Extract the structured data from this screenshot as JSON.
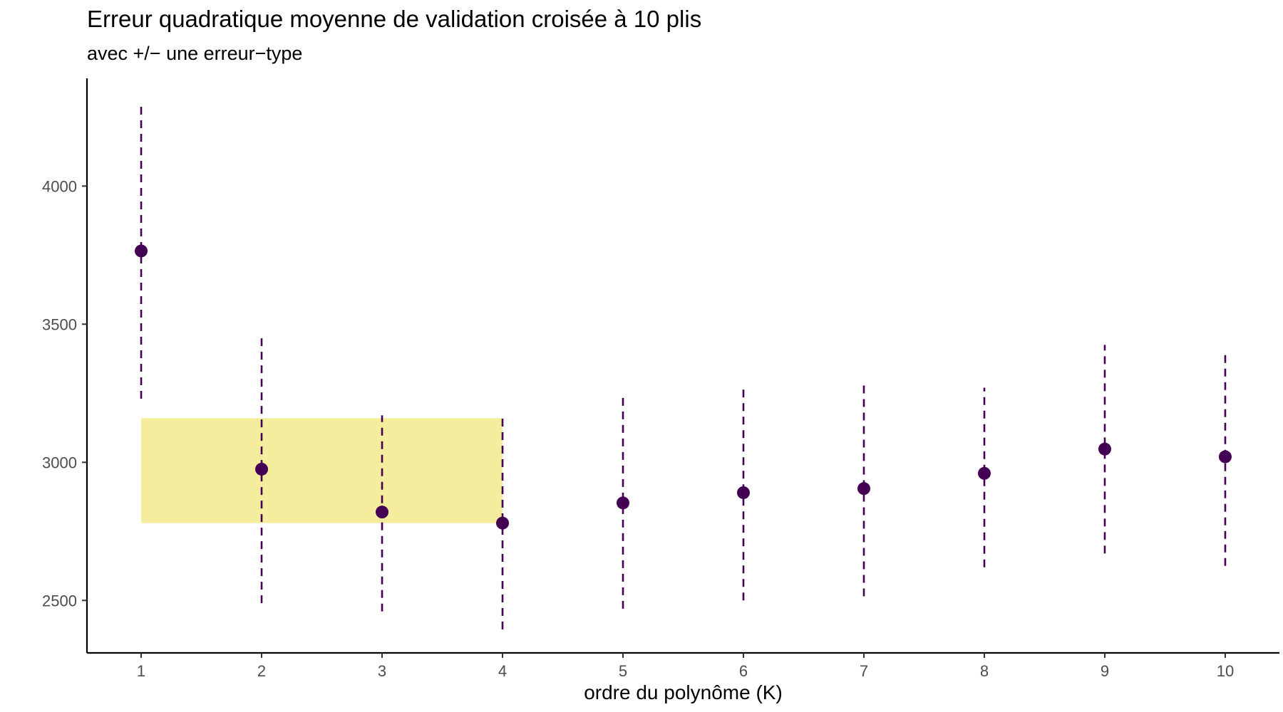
{
  "chart_data": {
    "type": "scatter",
    "title": "Erreur quadratique moyenne de validation croisée à 10 plis",
    "subtitle": "avec +/− une erreur−type",
    "xlabel": "ordre du polynôme (K)",
    "ylabel": "",
    "x": [
      1,
      2,
      3,
      4,
      5,
      6,
      7,
      8,
      9,
      10
    ],
    "x_tick_labels": [
      "1",
      "2",
      "3",
      "4",
      "5",
      "6",
      "7",
      "8",
      "9",
      "10"
    ],
    "y": [
      3765,
      2975,
      2820,
      2780,
      2853,
      2890,
      2905,
      2960,
      3048,
      3020
    ],
    "error_low": [
      3230,
      2490,
      2460,
      2395,
      2470,
      2500,
      2515,
      2620,
      2670,
      2625
    ],
    "error_high": [
      4290,
      3450,
      3170,
      3160,
      3235,
      3275,
      3290,
      3270,
      3425,
      3400
    ],
    "y_ticks": [
      2500,
      3000,
      3500,
      4000
    ],
    "y_tick_labels": [
      "2500",
      "3000",
      "3500",
      "4000"
    ],
    "xlim": [
      0.55,
      10.45
    ],
    "ylim": [
      2310,
      4390
    ],
    "highlight_band": {
      "x_start": 1,
      "x_end": 4,
      "y_low": 2780,
      "y_high": 3160
    },
    "grid": false,
    "colors": {
      "points": "#440154",
      "errorbars": "#440154",
      "band": "#f5ed9e"
    }
  }
}
